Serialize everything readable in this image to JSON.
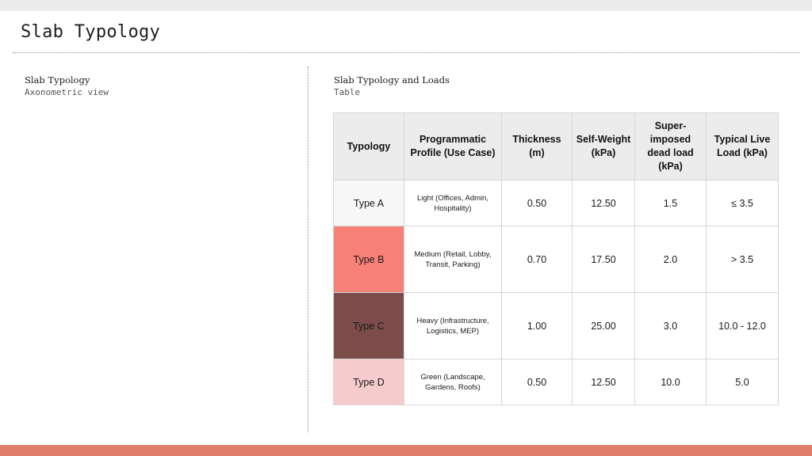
{
  "slide": {
    "title": "Slab Typology"
  },
  "left_panel": {
    "heading": "Slab Typology",
    "subheading": "Axonometric view"
  },
  "right_panel": {
    "heading": "Slab Typology and Loads",
    "subheading": "Table"
  },
  "table": {
    "headers": [
      "Typology",
      "Programmatic Profile (Use Case)",
      "Thickness (m)",
      "Self-Weight (kPa)",
      "Super-imposed dead load (kPa)",
      "Typical Live Load (kPa)"
    ],
    "rows": [
      {
        "typology": "Type A",
        "profile": "Light (Offices, Admin, Hospitality)",
        "thickness": "0.50",
        "self_weight": "12.50",
        "sdl": "1.5",
        "live_load": "≤ 3.5",
        "swatch_color": "#f7f7f7"
      },
      {
        "typology": "Type B",
        "profile": "Medium (Retail, Lobby, Transit, Parking)",
        "thickness": "0.70",
        "self_weight": "17.50",
        "sdl": "2.0",
        "live_load": "> 3.5",
        "swatch_color": "#f78079"
      },
      {
        "typology": "Type C",
        "profile": "Heavy (Infrastructure, Logistics, MEP)",
        "thickness": "1.00",
        "self_weight": "25.00",
        "sdl": "3.0",
        "live_load": "10.0 - 12.0",
        "swatch_color": "#7b4c4a"
      },
      {
        "typology": "Type D",
        "profile": "Green (Landscape, Gardens, Roofs)",
        "thickness": "0.50",
        "self_weight": "12.50",
        "sdl": "10.0",
        "live_load": "5.0",
        "swatch_color": "#f5cccb"
      }
    ]
  },
  "colors": {
    "top_band": "#ececec",
    "footer_band": "#e07e6c",
    "header_fill": "#ececec"
  }
}
